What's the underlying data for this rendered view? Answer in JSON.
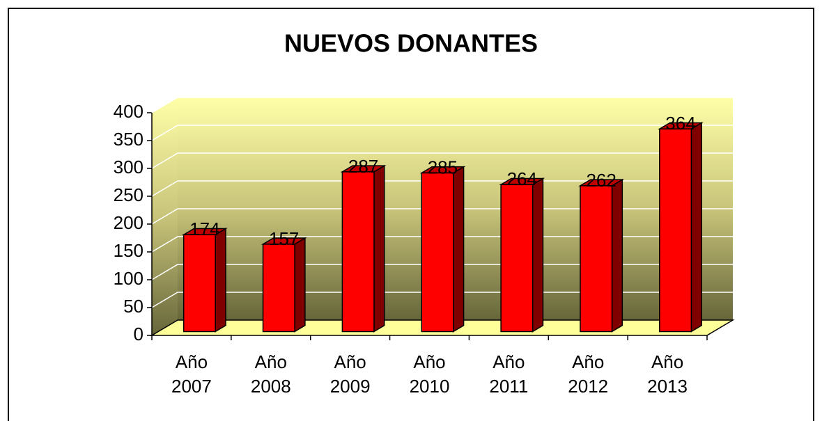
{
  "chart_data": {
    "type": "bar3d",
    "title": "NUEVOS DONANTES",
    "categories": [
      "Año 2007",
      "Año 2008",
      "Año 2009",
      "Año 2010",
      "Año 2011",
      "Año 2012",
      "Año 2013"
    ],
    "values": [
      174,
      157,
      287,
      285,
      264,
      262,
      364
    ],
    "color": "#ff0000",
    "ylim": [
      0,
      400
    ],
    "yticks": [
      0,
      50,
      100,
      150,
      200,
      250,
      300,
      350,
      400
    ],
    "grid": true
  }
}
